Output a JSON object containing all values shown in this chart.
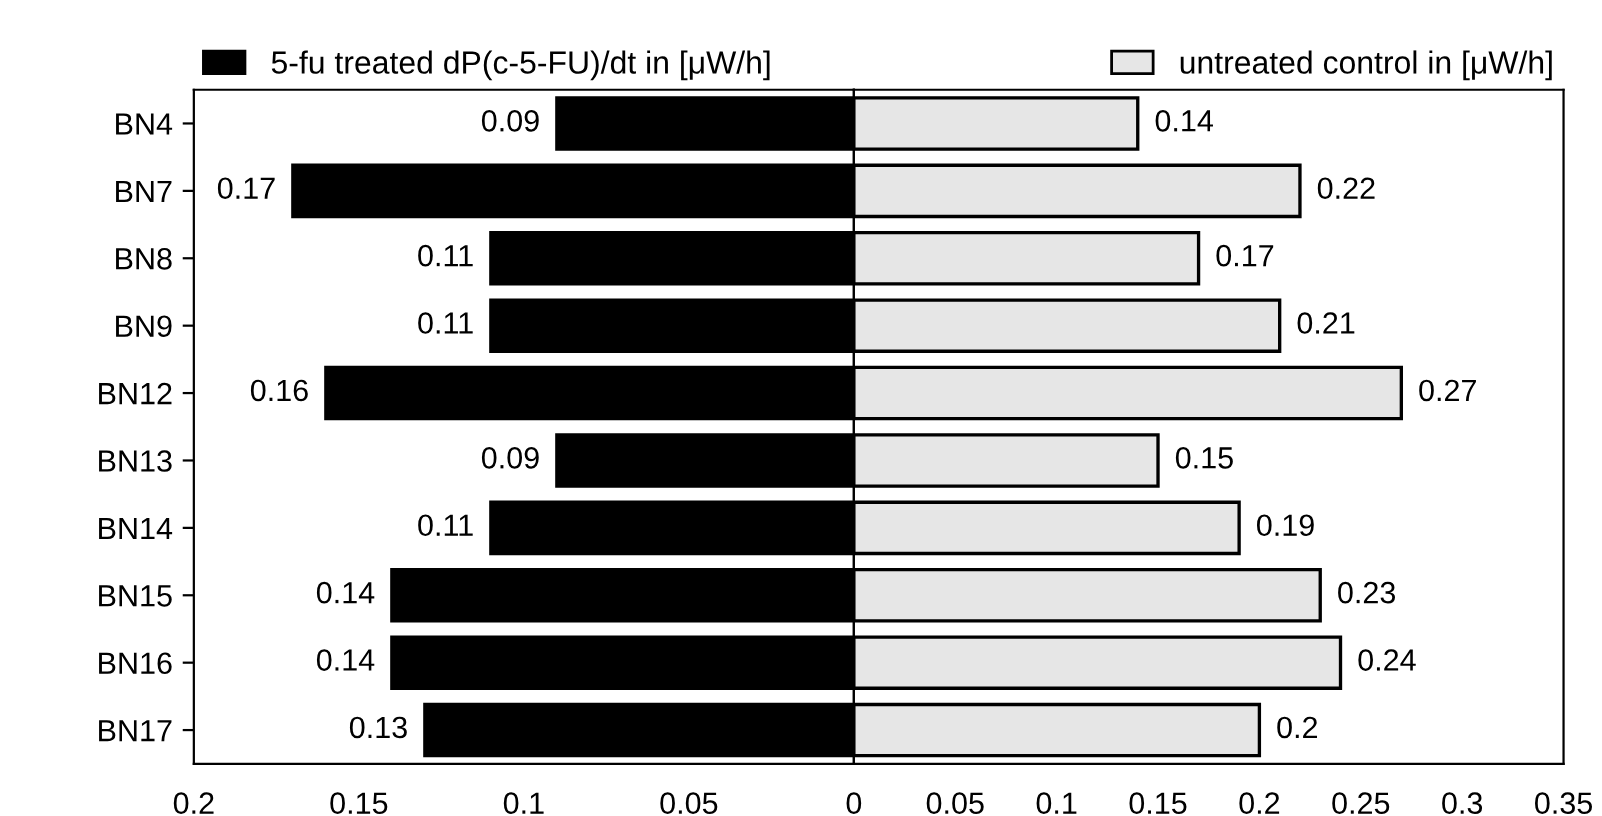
{
  "chart_data": [
    {
      "type": "bar",
      "orientation": "horizontal",
      "categories": [
        "BN4",
        "BN7",
        "BN8",
        "BN9",
        "BN12",
        "BN13",
        "BN14",
        "BN15",
        "BN16",
        "BN17"
      ],
      "series": [
        {
          "name": "5-fu treated dP(c-5-FU)/dt in [μW/h]",
          "color": "#000000",
          "values": [
            0.09,
            0.17,
            0.11,
            0.11,
            0.16,
            0.09,
            0.11,
            0.14,
            0.14,
            0.13
          ]
        }
      ],
      "xlim": [
        0.2,
        0
      ],
      "xticks": [
        0.2,
        0.15,
        0.1,
        0.05
      ],
      "data_labels": true,
      "legend": "top left",
      "grid": false
    },
    {
      "type": "bar",
      "orientation": "horizontal",
      "categories": [
        null,
        null,
        null,
        null,
        null,
        null,
        null,
        null,
        null,
        null
      ],
      "series": [
        {
          "name": "untreated control in [μW/h]",
          "color": "#e6e6e6",
          "values": [
            0.14,
            0.22,
            0.17,
            0.21,
            0.27,
            0.15,
            0.19,
            0.23,
            0.24,
            0.2
          ]
        }
      ],
      "xlim": [
        0,
        0.35
      ],
      "xticks": [
        0,
        0.05,
        0.1,
        0.15,
        0.2,
        0.25,
        0.3,
        0.35
      ],
      "data_labels": true,
      "legend": "top right",
      "tick_labels": "x",
      "grid": false
    }
  ]
}
